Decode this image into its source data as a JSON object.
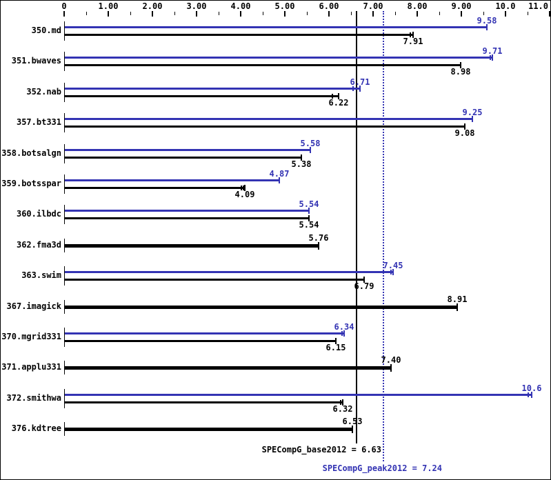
{
  "chart_data": {
    "type": "bar",
    "orientation": "horizontal",
    "title": "",
    "xlabel": "",
    "ylabel": "",
    "xlim": [
      0,
      11.3
    ],
    "grid": false,
    "colors": {
      "peak_blue": "#3333b3",
      "base_black": "#000000",
      "background": "#ffffff"
    },
    "axis": {
      "ticks": [
        {
          "value": 0,
          "label": "0"
        },
        {
          "value": 1,
          "label": "1.00"
        },
        {
          "value": 2,
          "label": "2.00"
        },
        {
          "value": 3,
          "label": "3.00"
        },
        {
          "value": 4,
          "label": "4.00"
        },
        {
          "value": 5,
          "label": "5.00"
        },
        {
          "value": 6,
          "label": "6.00"
        },
        {
          "value": 7,
          "label": "7.00"
        },
        {
          "value": 8,
          "label": "8.00"
        },
        {
          "value": 9,
          "label": "9.00"
        },
        {
          "value": 10,
          "label": "10.0"
        },
        {
          "value": 11,
          "label": "11.0"
        }
      ],
      "minor_tick_step": 0.5
    },
    "series": [
      {
        "name": "peak",
        "color": "#3333b3"
      },
      {
        "name": "base",
        "color": "#000000"
      }
    ],
    "benchmarks": [
      {
        "name": "350.md",
        "peak": 9.58,
        "peak_label": "9.58",
        "base": 7.91,
        "base_label": "7.91",
        "base_run_marks": [
          7.85,
          7.91
        ]
      },
      {
        "name": "351.bwaves",
        "peak": 9.71,
        "peak_label": "9.71",
        "peak_run_marks": [
          9.66,
          9.71
        ],
        "base": 8.98,
        "base_label": "8.98"
      },
      {
        "name": "352.nab",
        "peak": 6.71,
        "peak_label": "6.71",
        "peak_run_marks": [
          6.55,
          6.71
        ],
        "base": 6.22,
        "base_label": "6.22",
        "base_run_marks": [
          6.08,
          6.22
        ]
      },
      {
        "name": "357.bt331",
        "peak": 9.25,
        "peak_label": "9.25",
        "base": 9.08,
        "base_label": "9.08"
      },
      {
        "name": "358.botsalgn",
        "peak": 5.58,
        "peak_label": "5.58",
        "base": 5.38,
        "base_label": "5.38"
      },
      {
        "name": "359.botsspar",
        "peak": 4.87,
        "peak_label": "4.87",
        "base": 4.09,
        "base_label": "4.09",
        "base_run_marks": [
          4.02,
          4.055,
          4.09
        ]
      },
      {
        "name": "360.ilbdc",
        "peak": 5.54,
        "peak_label": "5.54",
        "base": 5.54,
        "base_label": "5.54"
      },
      {
        "name": "362.fma3d",
        "single": true,
        "base": 5.76,
        "base_label": "5.76"
      },
      {
        "name": "363.swim",
        "peak": 7.45,
        "peak_label": "7.45",
        "peak_run_marks": [
          7.4,
          7.45
        ],
        "base": 6.79,
        "base_label": "6.79"
      },
      {
        "name": "367.imagick",
        "single": true,
        "base": 8.91,
        "base_label": "8.91"
      },
      {
        "name": "370.mgrid331",
        "peak": 6.34,
        "peak_label": "6.34",
        "peak_run_marks": [
          6.3,
          6.34
        ],
        "base": 6.15,
        "base_label": "6.15"
      },
      {
        "name": "371.applu331",
        "single": true,
        "base": 7.4,
        "base_label": "7.40"
      },
      {
        "name": "372.smithwa",
        "peak": 10.6,
        "peak_label": "10.6",
        "peak_run_marks": [
          10.52,
          10.6
        ],
        "base": 6.32,
        "base_label": "6.32",
        "base_run_marks": [
          6.26,
          6.32
        ]
      },
      {
        "name": "376.kdtree",
        "single": true,
        "base": 6.53,
        "base_label": "6.53"
      }
    ],
    "means": {
      "base": {
        "text": "SPECompG_base2012 = 6.63",
        "value": 6.63
      },
      "peak": {
        "text": "SPECompG_peak2012 = 7.24",
        "value": 7.24
      }
    }
  }
}
